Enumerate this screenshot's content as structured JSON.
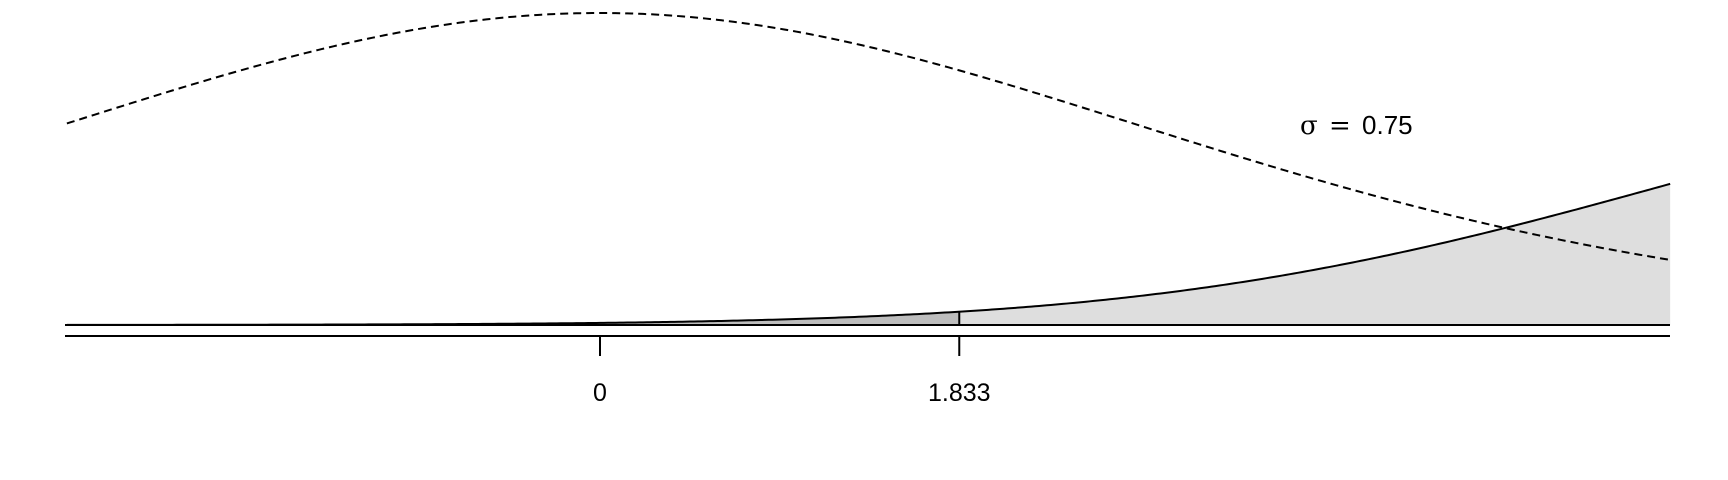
{
  "chart_data": {
    "type": "area",
    "title": "",
    "xlabel": "",
    "ylabel": "",
    "xlim": [
      -5.5,
      11
    ],
    "critical_value": 1.833,
    "ticks": [
      {
        "value": 0,
        "label": "0"
      },
      {
        "value": 1.833,
        "label": "1.833"
      }
    ],
    "annotation": {
      "symbol": "σ",
      "eq": "=",
      "value": "0.75"
    },
    "series": [
      {
        "distribution": "t",
        "df": 9,
        "noncentrality": 0,
        "line": "dashed",
        "fill": "none"
      },
      {
        "distribution": "noncentral-t",
        "df": 9,
        "noncentrality": 3.162,
        "line": "solid",
        "fill_left_of_critical": "#bdbdbd",
        "fill_right_of_critical": "#dedede"
      }
    ],
    "colors": {
      "region_left": "#bdbdbd",
      "region_right": "#dedede",
      "line": "#000000"
    }
  }
}
